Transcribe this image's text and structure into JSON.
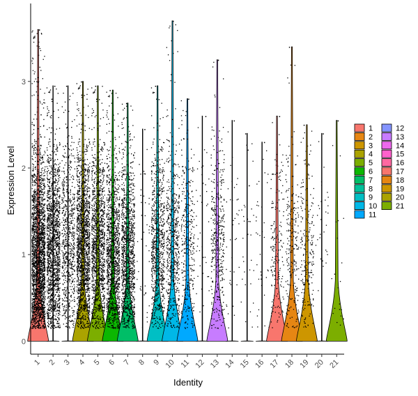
{
  "chart_data": {
    "type": "violin",
    "title": "",
    "xlabel": "Identity",
    "ylabel": "Expression Level",
    "ylim": [
      -0.15,
      3.9
    ],
    "y_ticks": [
      0,
      1,
      2,
      3
    ],
    "grid": false,
    "legend_position": "right",
    "categories": [
      "1",
      "2",
      "3",
      "4",
      "5",
      "6",
      "7",
      "8",
      "9",
      "10",
      "11",
      "12",
      "13",
      "14",
      "15",
      "16",
      "17",
      "18",
      "19",
      "20",
      "21"
    ],
    "colors": [
      "#F8766D",
      "#E68613",
      "#CD9600",
      "#ABA300",
      "#7CAE00",
      "#0CB702",
      "#00BE67",
      "#00C19A",
      "#00BFC4",
      "#00B8E7",
      "#00A9FF",
      "#8494FF",
      "#C77CFF",
      "#ED68ED",
      "#FF61CC",
      "#FF68A1",
      "#F8766D",
      "#E68613",
      "#CD9600",
      "#ABA300",
      "#7CAE00"
    ],
    "series": [
      {
        "name": "1",
        "violin": true,
        "max": 3.6,
        "points": 2400,
        "median": 1.0
      },
      {
        "name": "2",
        "violin": false,
        "max": 2.95,
        "points": 1600,
        "median": 1.1
      },
      {
        "name": "3",
        "violin": false,
        "max": 2.95,
        "points": 700,
        "median": 1.2
      },
      {
        "name": "4",
        "violin": true,
        "max": 3.0,
        "points": 1700,
        "median": 1.1
      },
      {
        "name": "5",
        "violin": true,
        "max": 2.95,
        "points": 1300,
        "median": 1.1
      },
      {
        "name": "6",
        "violin": true,
        "max": 2.9,
        "points": 1300,
        "median": 1.0
      },
      {
        "name": "7",
        "violin": true,
        "max": 2.75,
        "points": 1200,
        "median": 1.0
      },
      {
        "name": "8",
        "violin": false,
        "max": 2.45,
        "points": 40,
        "median": 1.2
      },
      {
        "name": "9",
        "violin": true,
        "max": 2.95,
        "points": 800,
        "median": 1.1
      },
      {
        "name": "10",
        "violin": true,
        "max": 3.7,
        "points": 600,
        "median": 1.1
      },
      {
        "name": "11",
        "violin": true,
        "max": 2.8,
        "points": 350,
        "median": 1.1
      },
      {
        "name": "12",
        "violin": false,
        "max": 2.6,
        "points": 40,
        "median": 1.3
      },
      {
        "name": "13",
        "violin": true,
        "max": 3.25,
        "points": 400,
        "median": 1.2
      },
      {
        "name": "14",
        "violin": false,
        "max": 2.55,
        "points": 40,
        "median": 1.2
      },
      {
        "name": "15",
        "violin": false,
        "max": 2.4,
        "points": 35,
        "median": 1.2
      },
      {
        "name": "16",
        "violin": false,
        "max": 2.3,
        "points": 35,
        "median": 1.2
      },
      {
        "name": "17",
        "violin": true,
        "max": 2.6,
        "points": 180,
        "median": 1.0
      },
      {
        "name": "18",
        "violin": true,
        "max": 3.4,
        "points": 230,
        "median": 1.1
      },
      {
        "name": "19",
        "violin": true,
        "max": 2.5,
        "points": 220,
        "median": 1.1
      },
      {
        "name": "20",
        "violin": false,
        "max": 2.4,
        "points": 30,
        "median": 1.2
      },
      {
        "name": "21",
        "violin": true,
        "max": 2.55,
        "points": 20,
        "median": 0.5
      }
    ]
  }
}
